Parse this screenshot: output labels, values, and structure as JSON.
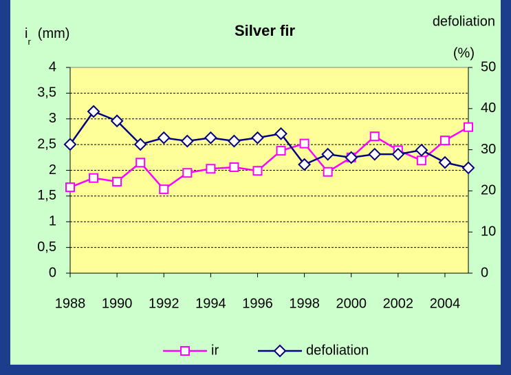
{
  "chart_data": {
    "type": "line",
    "title": "Silver fir",
    "y_label": "i",
    "y_label_sub": "r",
    "y_label_unit": "(mm)",
    "y2_label": [
      "defoliation",
      "(%)"
    ],
    "x": [
      1988,
      1989,
      1990,
      1991,
      1992,
      1993,
      1994,
      1995,
      1996,
      1997,
      1998,
      1999,
      2000,
      2001,
      2002,
      2003,
      2004,
      2005
    ],
    "xlim": [
      1988,
      2005
    ],
    "xticks": [
      1988,
      1990,
      1992,
      1994,
      1996,
      1998,
      2000,
      2002,
      2004
    ],
    "ylim": [
      0,
      4
    ],
    "yticks": [
      0,
      {
        "value": 0.5,
        "label": "0,5"
      },
      1,
      {
        "value": 1.5,
        "label": "1,5"
      },
      2,
      {
        "value": 2.5,
        "label": "2,5"
      },
      3,
      {
        "value": 3.5,
        "label": "3,5"
      },
      4
    ],
    "y2lim": [
      0,
      50
    ],
    "y2ticks": [
      0,
      10,
      20,
      30,
      40,
      50
    ],
    "grid": true,
    "legend": "bottom",
    "series": [
      {
        "name": "ir",
        "color": "#ff00ff",
        "marker": "square",
        "values": [
          1.67,
          1.85,
          1.78,
          2.15,
          1.63,
          1.95,
          2.03,
          2.06,
          1.99,
          2.38,
          2.52,
          1.97,
          2.25,
          2.66,
          2.39,
          2.19,
          2.58,
          2.84
        ]
      },
      {
        "name": "defoliation",
        "color": "#000080",
        "marker": "diamond",
        "axis": "y2",
        "values": [
          31.3,
          39.3,
          37.0,
          31.3,
          32.9,
          32.1,
          32.9,
          32.1,
          32.9,
          33.9,
          26.4,
          28.9,
          28.1,
          28.9,
          28.9,
          29.9,
          26.9,
          25.6
        ]
      }
    ]
  }
}
